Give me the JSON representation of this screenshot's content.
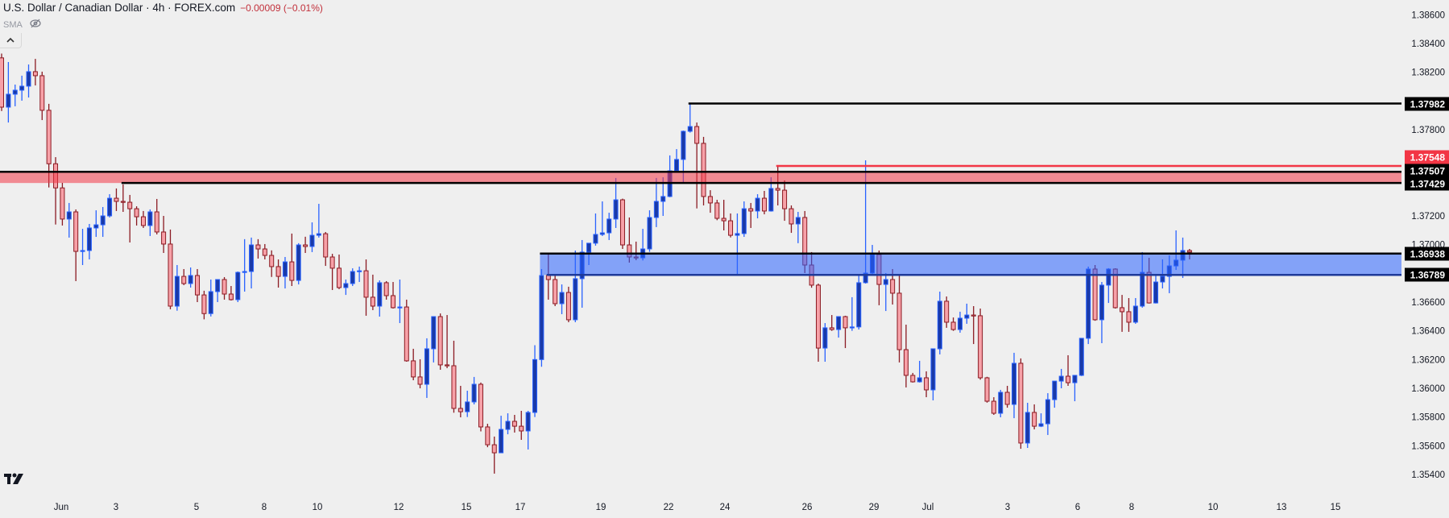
{
  "header": {
    "title": "U.S. Dollar / Canadian Dollar · 4h · FOREX.com",
    "change": "−0.00009 (−0.01%)",
    "indicator": "SMA",
    "indicator_icon": "eye-crossed-icon",
    "collapse_icon": "chevron-up-icon",
    "logo": "TV"
  },
  "colors": {
    "background": "#efefef",
    "up_body": "#1a3aa8",
    "up_border": "#2962ff",
    "down_body": "#f7a1a8",
    "down_border": "#8b1a22",
    "resistance_zone": "#f23645",
    "support_zone": "#2962ff",
    "line_black": "#000000",
    "line_red": "#f23645",
    "change_text": "#c2303b"
  },
  "chart_data": {
    "type": "candlestick",
    "timeframe": "4h",
    "symbol": "USDCAD",
    "ylim": [
      1.3535,
      1.3867
    ],
    "grid": false,
    "price_ticks": [
      "1.38600",
      "1.38400",
      "1.38200",
      "1.37800",
      "1.37200",
      "1.37000",
      "1.36600",
      "1.36400",
      "1.36200",
      "1.36000",
      "1.35800",
      "1.35600",
      "1.35400"
    ],
    "time_ticks": [
      "Jun",
      "3",
      "5",
      "8",
      "10",
      "12",
      "15",
      "17",
      "19",
      "22",
      "24",
      "26",
      "29",
      "Jul",
      "3",
      "6",
      "8",
      "10",
      "13",
      "15"
    ],
    "price_badges": [
      {
        "label": "1.37982",
        "value": 1.37982,
        "color": "#000000"
      },
      {
        "label": "1.37548",
        "value": 1.37548,
        "color": "#f23645"
      },
      {
        "label": "1.37507",
        "value": 1.37507,
        "color": "#000000"
      },
      {
        "label": "1.37429",
        "value": 1.37429,
        "color": "#000000"
      },
      {
        "label": "1.36938",
        "value": 1.36938,
        "color": "#000000"
      },
      {
        "label": "1.36789",
        "value": 1.36789,
        "color": "#000000"
      }
    ],
    "horizontal_lines": [
      {
        "value": 1.37982,
        "color": "#000000",
        "from_candle": 102
      },
      {
        "value": 1.37548,
        "color": "#f23645",
        "from_candle": 115
      }
    ],
    "zones": [
      {
        "top": 1.37507,
        "bottom": 1.37429,
        "color": "#f23645",
        "from_candle": 0,
        "top_line": "#000000",
        "bottom_line": "#000000",
        "bottom_line_from_candle": 18
      },
      {
        "top": 1.36938,
        "bottom": 1.36789,
        "color": "#2962ff",
        "from_candle": 80,
        "top_line": "#000000",
        "bottom_line": "#1e3a9a",
        "bottom_line_from_candle": 81
      }
    ],
    "ohlc": [
      [
        1.383,
        1.3833,
        1.3793,
        1.37957
      ],
      [
        1.37957,
        1.38271,
        1.3785,
        1.38047
      ],
      [
        1.38047,
        1.38114,
        1.37963,
        1.38075
      ],
      [
        1.38075,
        1.38176,
        1.38002,
        1.38103
      ],
      [
        1.38103,
        1.38254,
        1.38024,
        1.38204
      ],
      [
        1.38204,
        1.38293,
        1.38108,
        1.38176
      ],
      [
        1.38176,
        1.38204,
        1.37867,
        1.37935
      ],
      [
        1.37935,
        1.3798,
        1.37398,
        1.37563
      ],
      [
        1.37563,
        1.37609,
        1.3714,
        1.37395
      ],
      [
        1.37395,
        1.3743,
        1.37133,
        1.37178
      ],
      [
        1.37178,
        1.3729,
        1.37049,
        1.37228
      ],
      [
        1.37228,
        1.37245,
        1.36746,
        1.36953
      ],
      [
        1.36953,
        1.3711,
        1.36858,
        1.36959
      ],
      [
        1.36959,
        1.37144,
        1.36897,
        1.37116
      ],
      [
        1.37116,
        1.37239,
        1.37054,
        1.37138
      ],
      [
        1.37138,
        1.37262,
        1.37054,
        1.372
      ],
      [
        1.372,
        1.37351,
        1.37189,
        1.37323
      ],
      [
        1.37323,
        1.37391,
        1.37234,
        1.37301
      ],
      [
        1.37301,
        1.37419,
        1.37228,
        1.37295
      ],
      [
        1.37295,
        1.37346,
        1.37015,
        1.3725
      ],
      [
        1.3725,
        1.37267,
        1.37133,
        1.37194
      ],
      [
        1.37194,
        1.37234,
        1.37116,
        1.37133
      ],
      [
        1.37133,
        1.37245,
        1.3706,
        1.37228
      ],
      [
        1.37228,
        1.37318,
        1.37071,
        1.37088
      ],
      [
        1.37088,
        1.372,
        1.36942,
        1.37004
      ],
      [
        1.37004,
        1.37105,
        1.3655,
        1.36572
      ],
      [
        1.36572,
        1.36858,
        1.3654,
        1.36779
      ],
      [
        1.36779,
        1.3683,
        1.36718,
        1.36729
      ],
      [
        1.36729,
        1.36841,
        1.36701,
        1.36785
      ],
      [
        1.36785,
        1.3683,
        1.366,
        1.3665
      ],
      [
        1.3665,
        1.36679,
        1.3648,
        1.3652
      ],
      [
        1.3652,
        1.36757,
        1.365,
        1.36673
      ],
      [
        1.36673,
        1.36757,
        1.366,
        1.36757
      ],
      [
        1.36757,
        1.36774,
        1.36617,
        1.36656
      ],
      [
        1.36656,
        1.36712,
        1.36611,
        1.36617
      ],
      [
        1.36617,
        1.36813,
        1.366,
        1.36807
      ],
      [
        1.36807,
        1.37038,
        1.36673,
        1.36813
      ],
      [
        1.36813,
        1.37049,
        1.36695,
        1.36998
      ],
      [
        1.36998,
        1.37038,
        1.36903,
        1.3697
      ],
      [
        1.3697,
        1.37004,
        1.36897,
        1.36925
      ],
      [
        1.36925,
        1.3696,
        1.36775,
        1.36847
      ],
      [
        1.36847,
        1.36897,
        1.36701,
        1.36779
      ],
      [
        1.36779,
        1.36914,
        1.36695,
        1.3688
      ],
      [
        1.3688,
        1.37077,
        1.36712,
        1.36751
      ],
      [
        1.36751,
        1.3701,
        1.36723,
        1.36998
      ],
      [
        1.36998,
        1.37055,
        1.36942,
        1.36987
      ],
      [
        1.36987,
        1.37155,
        1.36948,
        1.37065
      ],
      [
        1.37065,
        1.37284,
        1.37049,
        1.37076
      ],
      [
        1.37076,
        1.37088,
        1.36852,
        1.36914
      ],
      [
        1.36914,
        1.36936,
        1.36684,
        1.36836
      ],
      [
        1.36836,
        1.36931,
        1.3669,
        1.36701
      ],
      [
        1.36701,
        1.36757,
        1.3665,
        1.36729
      ],
      [
        1.36729,
        1.36835,
        1.36712,
        1.36813
      ],
      [
        1.36813,
        1.36847,
        1.3674,
        1.36818
      ],
      [
        1.36818,
        1.36897,
        1.36505,
        1.36634
      ],
      [
        1.36634,
        1.36791,
        1.36544,
        1.36572
      ],
      [
        1.36572,
        1.36751,
        1.36499,
        1.36735
      ],
      [
        1.36735,
        1.36746,
        1.36617,
        1.36645
      ],
      [
        1.36645,
        1.3674,
        1.36555,
        1.36561
      ],
      [
        1.36561,
        1.36757,
        1.36454,
        1.36566
      ],
      [
        1.36566,
        1.36617,
        1.36185,
        1.36191
      ],
      [
        1.36191,
        1.36275,
        1.36056,
        1.36079
      ],
      [
        1.36079,
        1.36202,
        1.36,
        1.36028
      ],
      [
        1.36028,
        1.36348,
        1.35933,
        1.36275
      ],
      [
        1.36275,
        1.36499,
        1.3618,
        1.36499
      ],
      [
        1.36499,
        1.36521,
        1.36129,
        1.36163
      ],
      [
        1.36163,
        1.3651,
        1.3614,
        1.36157
      ],
      [
        1.36157,
        1.36331,
        1.3583,
        1.3586
      ],
      [
        1.3586,
        1.36017,
        1.35798,
        1.35837
      ],
      [
        1.35837,
        1.35983,
        1.358,
        1.35905
      ],
      [
        1.35905,
        1.36079,
        1.35888,
        1.36028
      ],
      [
        1.36028,
        1.3604,
        1.357,
        1.35731
      ],
      [
        1.35731,
        1.35753,
        1.3559,
        1.35607
      ],
      [
        1.35607,
        1.35664,
        1.35406,
        1.35551
      ],
      [
        1.35551,
        1.35809,
        1.35551,
        1.35714
      ],
      [
        1.35714,
        1.35826,
        1.3568,
        1.3577
      ],
      [
        1.3577,
        1.35815,
        1.35692,
        1.35736
      ],
      [
        1.35736,
        1.35843,
        1.35641,
        1.35703
      ],
      [
        1.35703,
        1.35843,
        1.35574,
        1.35832
      ],
      [
        1.35832,
        1.363,
        1.358,
        1.362
      ],
      [
        1.362,
        1.3683,
        1.3615,
        1.36785
      ],
      [
        1.36785,
        1.36942,
        1.36617,
        1.36757
      ],
      [
        1.36757,
        1.36791,
        1.36572,
        1.36589
      ],
      [
        1.36589,
        1.36723,
        1.36516,
        1.36667
      ],
      [
        1.36667,
        1.36707,
        1.3646,
        1.36477
      ],
      [
        1.36477,
        1.36959,
        1.3646,
        1.36763
      ],
      [
        1.36763,
        1.37032,
        1.36561,
        1.36948
      ],
      [
        1.36948,
        1.3701,
        1.36858,
        1.3701
      ],
      [
        1.3701,
        1.37217,
        1.36993,
        1.37071
      ],
      [
        1.37071,
        1.37301,
        1.3706,
        1.37082
      ],
      [
        1.37082,
        1.37222,
        1.37032,
        1.37178
      ],
      [
        1.37178,
        1.37464,
        1.37116,
        1.37312
      ],
      [
        1.37312,
        1.3732,
        1.3697,
        1.36998
      ],
      [
        1.36998,
        1.37189,
        1.36875,
        1.36914
      ],
      [
        1.36914,
        1.37021,
        1.36892,
        1.36908
      ],
      [
        1.36908,
        1.3711,
        1.3689,
        1.3697
      ],
      [
        1.3697,
        1.37239,
        1.3695,
        1.37189
      ],
      [
        1.37189,
        1.37464,
        1.37122,
        1.37301
      ],
      [
        1.37301,
        1.37469,
        1.372,
        1.37335
      ],
      [
        1.37335,
        1.37621,
        1.3733,
        1.37514
      ],
      [
        1.37514,
        1.37665,
        1.37509,
        1.37593
      ],
      [
        1.37593,
        1.37794,
        1.3743,
        1.37789
      ],
      [
        1.37789,
        1.37982,
        1.3778,
        1.37822
      ],
      [
        1.37822,
        1.3785,
        1.37252,
        1.37705
      ],
      [
        1.37705,
        1.3775,
        1.37273,
        1.37335
      ],
      [
        1.37335,
        1.37379,
        1.37222,
        1.3729
      ],
      [
        1.3729,
        1.37312,
        1.3717,
        1.37183
      ],
      [
        1.37183,
        1.37312,
        1.37099,
        1.37166
      ],
      [
        1.37166,
        1.37217,
        1.3705,
        1.37065
      ],
      [
        1.37065,
        1.37217,
        1.36796,
        1.37077
      ],
      [
        1.37077,
        1.37301,
        1.37054,
        1.3725
      ],
      [
        1.3725,
        1.3729,
        1.37116,
        1.37234
      ],
      [
        1.37234,
        1.37351,
        1.37183,
        1.37323
      ],
      [
        1.37323,
        1.37374,
        1.37211,
        1.37234
      ],
      [
        1.37234,
        1.37469,
        1.3723,
        1.37391
      ],
      [
        1.37391,
        1.37548,
        1.37273,
        1.37379
      ],
      [
        1.37379,
        1.37447,
        1.37166,
        1.3725
      ],
      [
        1.3725,
        1.37273,
        1.37082,
        1.37144
      ],
      [
        1.37144,
        1.37228,
        1.3701,
        1.37189
      ],
      [
        1.37189,
        1.37234,
        1.36802,
        1.36858
      ],
      [
        1.36858,
        1.36948,
        1.367,
        1.36718
      ],
      [
        1.36718,
        1.36729,
        1.36185,
        1.3628
      ],
      [
        1.3628,
        1.36454,
        1.36185,
        1.36421
      ],
      [
        1.36421,
        1.3651,
        1.364,
        1.36409
      ],
      [
        1.36409,
        1.36499,
        1.36353,
        1.36499
      ],
      [
        1.36499,
        1.36505,
        1.3628,
        1.36421
      ],
      [
        1.36421,
        1.36634,
        1.364,
        1.36427
      ],
      [
        1.36427,
        1.36785,
        1.36409,
        1.36735
      ],
      [
        1.36735,
        1.37587,
        1.36729,
        1.36802
      ],
      [
        1.36802,
        1.36998,
        1.3679,
        1.36931
      ],
      [
        1.36931,
        1.36959,
        1.36578,
        1.36723
      ],
      [
        1.36723,
        1.36802,
        1.36538,
        1.36757
      ],
      [
        1.36757,
        1.3683,
        1.36583,
        1.36662
      ],
      [
        1.36662,
        1.36785,
        1.3618,
        1.36269
      ],
      [
        1.36269,
        1.36443,
        1.36006,
        1.3609
      ],
      [
        1.3609,
        1.36107,
        1.3604,
        1.36045
      ],
      [
        1.36045,
        1.36191,
        1.3604,
        1.36073
      ],
      [
        1.36073,
        1.36118,
        1.35938,
        1.35989
      ],
      [
        1.35989,
        1.36275,
        1.35916,
        1.36275
      ],
      [
        1.36275,
        1.36673,
        1.36236,
        1.36606
      ],
      [
        1.36606,
        1.36639,
        1.36421,
        1.3646
      ],
      [
        1.3646,
        1.36493,
        1.364,
        1.36409
      ],
      [
        1.36409,
        1.36533,
        1.36387,
        1.36488
      ],
      [
        1.36488,
        1.36589,
        1.36449,
        1.3651
      ],
      [
        1.3651,
        1.36572,
        1.36308,
        1.36505
      ],
      [
        1.36505,
        1.36555,
        1.3606,
        1.36073
      ],
      [
        1.36073,
        1.3608,
        1.359,
        1.3591
      ],
      [
        1.3591,
        1.35938,
        1.35815,
        1.35826
      ],
      [
        1.35826,
        1.35989,
        1.35798,
        1.35972
      ],
      [
        1.35972,
        1.36017,
        1.35865,
        1.35888
      ],
      [
        1.35888,
        1.36247,
        1.35792,
        1.36174
      ],
      [
        1.36174,
        1.36208,
        1.35579,
        1.35619
      ],
      [
        1.35619,
        1.35899,
        1.35585,
        1.35832
      ],
      [
        1.35832,
        1.35888,
        1.35714,
        1.35736
      ],
      [
        1.35736,
        1.35826,
        1.3573,
        1.35753
      ],
      [
        1.35753,
        1.35966,
        1.35675,
        1.35921
      ],
      [
        1.35921,
        1.3605,
        1.35865,
        1.3605
      ],
      [
        1.3605,
        1.36135,
        1.36,
        1.36084
      ],
      [
        1.36084,
        1.3623,
        1.36017,
        1.36039
      ],
      [
        1.36039,
        1.3609,
        1.3591,
        1.3609
      ],
      [
        1.3609,
        1.36348,
        1.36085,
        1.36348
      ],
      [
        1.36348,
        1.36847,
        1.36308,
        1.3683
      ],
      [
        1.3683,
        1.36858,
        1.3647,
        1.36477
      ],
      [
        1.36477,
        1.3674,
        1.36314,
        1.36718
      ],
      [
        1.36718,
        1.36836,
        1.36594,
        1.3683
      ],
      [
        1.3683,
        1.36835,
        1.36555,
        1.36561
      ],
      [
        1.36561,
        1.3665,
        1.36393,
        1.36533
      ],
      [
        1.36533,
        1.36628,
        1.36393,
        1.3646
      ],
      [
        1.3646,
        1.36628,
        1.36449,
        1.36572
      ],
      [
        1.36572,
        1.36948,
        1.36561,
        1.36807
      ],
      [
        1.36807,
        1.36908,
        1.3659,
        1.36594
      ],
      [
        1.36594,
        1.36785,
        1.3659,
        1.3674
      ],
      [
        1.3674,
        1.36897,
        1.36695,
        1.36779
      ],
      [
        1.36779,
        1.36925,
        1.36662,
        1.36852
      ],
      [
        1.36852,
        1.37099,
        1.36824,
        1.36892
      ],
      [
        1.36892,
        1.37049,
        1.36768,
        1.36959
      ],
      [
        1.36959,
        1.3697,
        1.36897,
        1.36948
      ]
    ]
  }
}
